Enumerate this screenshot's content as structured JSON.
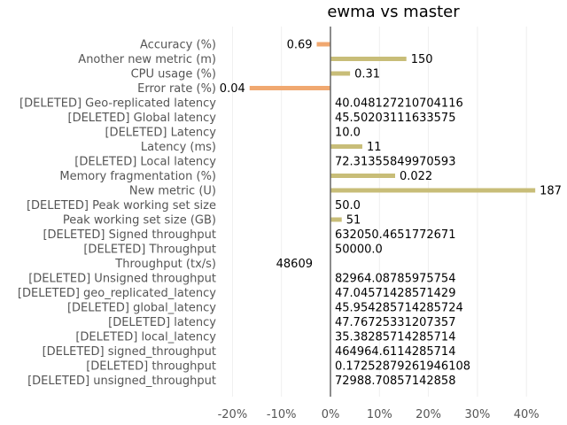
{
  "chart_data": {
    "type": "bar",
    "orientation": "horizontal",
    "title": "ewma vs master",
    "xlabel": "",
    "ylabel": "",
    "xlim": [
      -0.22,
      0.42
    ],
    "x_ticks": [
      -0.2,
      -0.1,
      0,
      0.1,
      0.2,
      0.3,
      0.4
    ],
    "x_tick_labels": [
      "-20%",
      "-10%",
      "0%",
      "10%",
      "20%",
      "30%",
      "40%"
    ],
    "grid": true,
    "colors": {
      "improvement": "#c8bd78",
      "regression": "#f0a870",
      "zero_line": "#666666"
    },
    "categories": [
      "Accuracy (%)",
      "Another new metric (m)",
      "CPU usage (%)",
      "Error rate (%)",
      "[DELETED] Geo-replicated latency",
      "[DELETED] Global latency",
      "[DELETED] Latency",
      "Latency (ms)",
      "[DELETED] Local latency",
      "Memory fragmentation (%)",
      "New metric (U)",
      "[DELETED] Peak working set size",
      "Peak working set size (GB)",
      "[DELETED] Signed throughput",
      "[DELETED] Throughput",
      "Throughput (tx/s)",
      "[DELETED] Unsigned throughput",
      "[DELETED] geo_replicated_latency",
      "[DELETED] global_latency",
      "[DELETED] latency",
      "[DELETED] local_latency",
      "[DELETED] signed_throughput",
      "[DELETED] throughput",
      "[DELETED] unsigned_throughput"
    ],
    "values": [
      -0.028,
      0.155,
      0.04,
      -0.165,
      0,
      0,
      0,
      0.065,
      0,
      0.132,
      0.418,
      0,
      0.023,
      0,
      0,
      0,
      0,
      0,
      0,
      0,
      0,
      0,
      0,
      0
    ],
    "bar_colors": [
      "regression",
      "improvement",
      "improvement",
      "regression",
      null,
      null,
      null,
      "improvement",
      null,
      "improvement",
      "improvement",
      null,
      "improvement",
      null,
      null,
      null,
      null,
      null,
      null,
      null,
      null,
      null,
      null,
      null
    ],
    "data_labels": [
      "0.69",
      "150",
      "0.31",
      "0.04",
      "40.048127210704116",
      "45.50203111633575",
      "10.0",
      "11",
      "72.31355849970593",
      "0.022",
      "187",
      "50.0",
      "51",
      "632050.4651772671",
      "50000.0",
      "48609",
      "82964.08785975754",
      "47.04571428571429",
      "45.954285714285724",
      "47.76725331207357",
      "35.38285714285714",
      "464964.6114285714",
      "0.17252879261946108",
      "72988.70857142858"
    ],
    "label_side": [
      "left",
      "right",
      "right",
      "left",
      "right",
      "right",
      "right",
      "right",
      "right",
      "right",
      "right",
      "right",
      "right",
      "right",
      "right",
      "left",
      "right",
      "right",
      "right",
      "right",
      "right",
      "right",
      "right",
      "right"
    ]
  }
}
